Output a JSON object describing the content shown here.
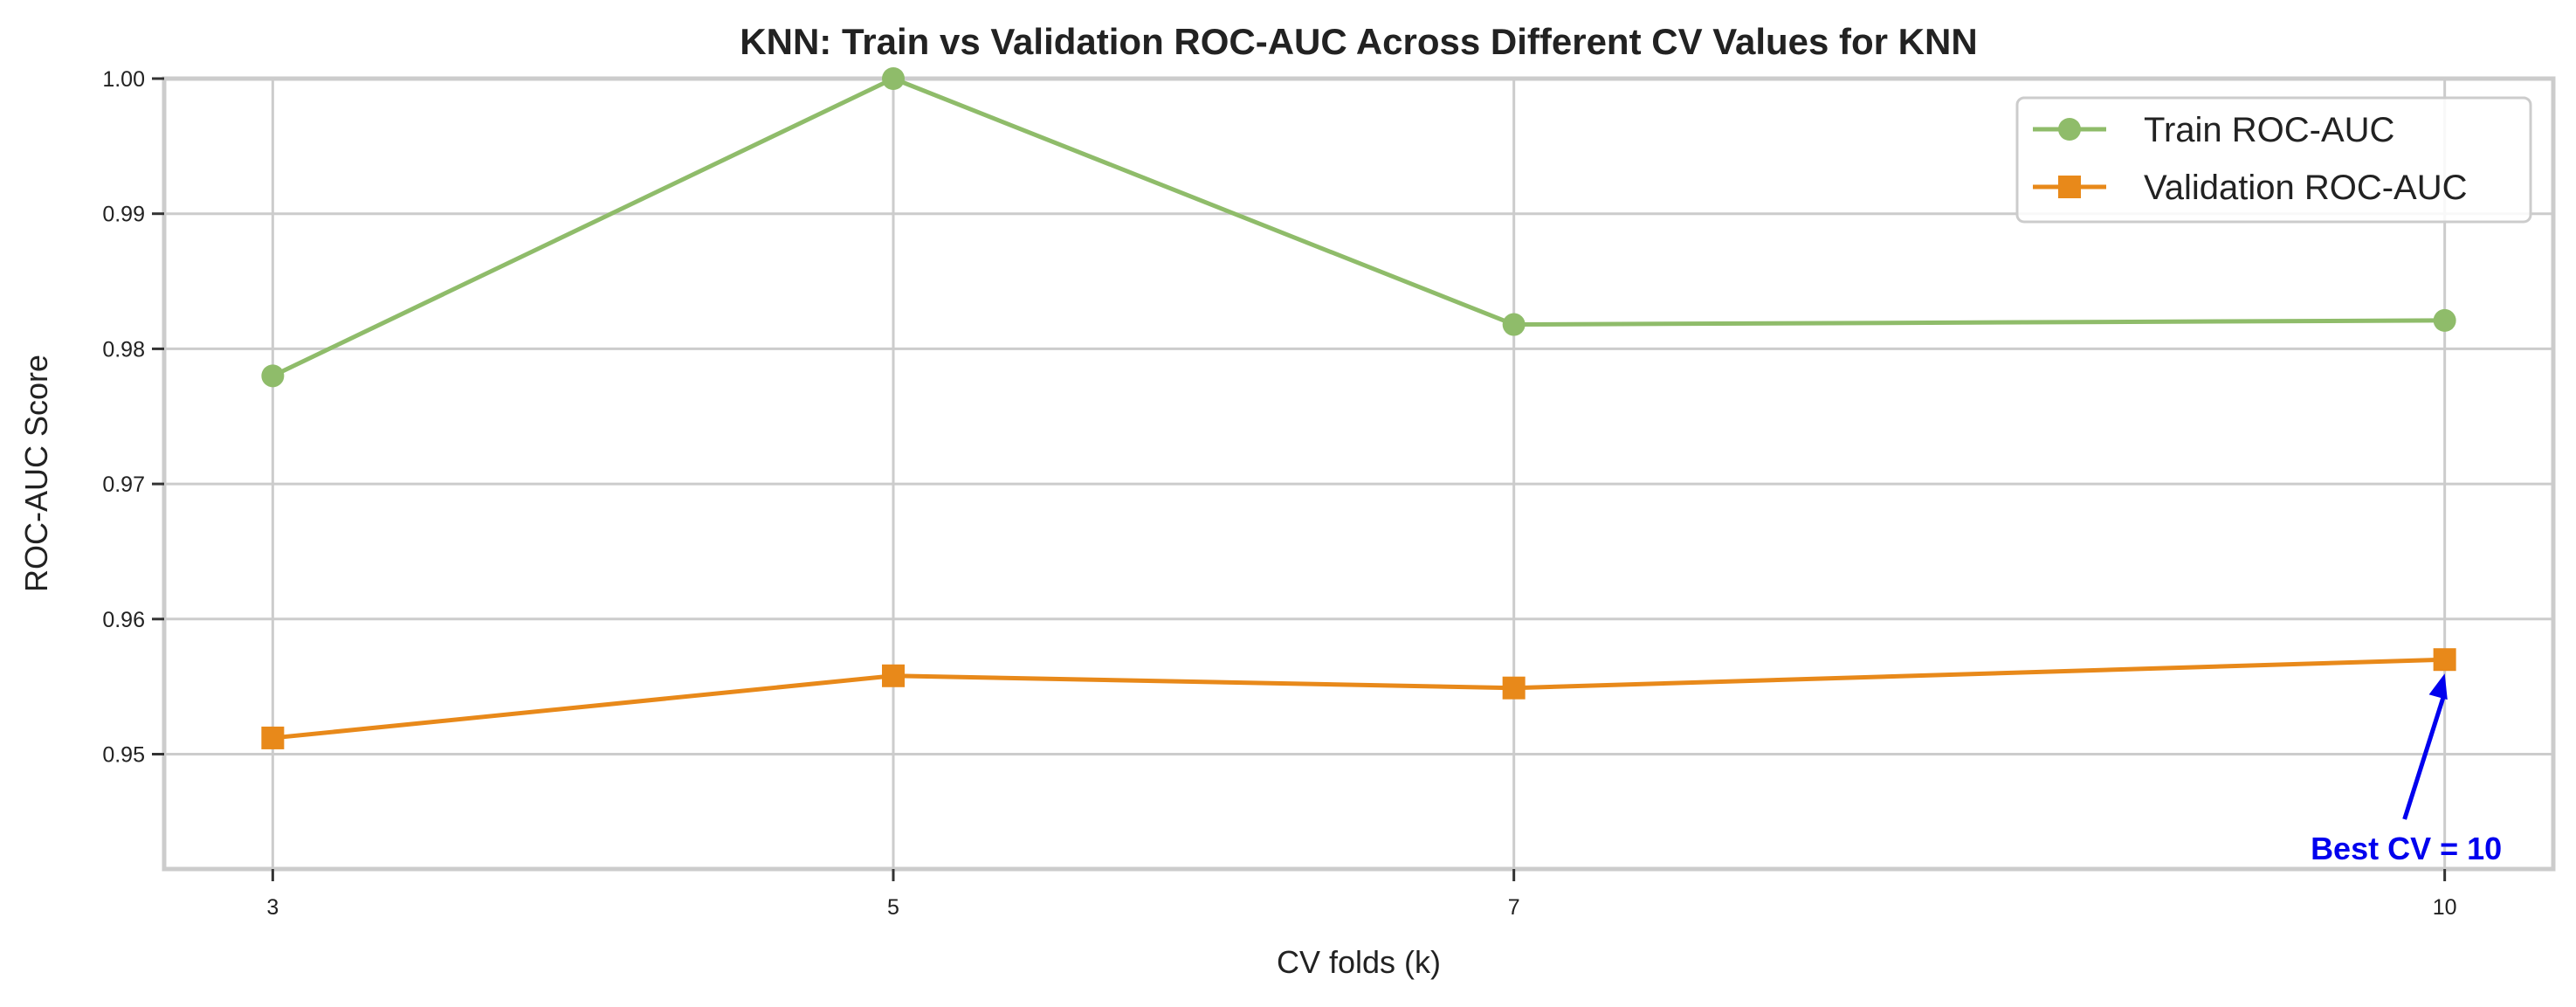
{
  "chart_data": {
    "type": "line",
    "title": "KNN: Train vs Validation ROC-AUC Across Different CV Values for KNN",
    "xlabel": "CV folds (k)",
    "ylabel": "ROC-AUC Score",
    "x": [
      3,
      5,
      7,
      10
    ],
    "x_tick_labels": [
      "3",
      "5",
      "7",
      "10"
    ],
    "y_ticks": [
      0.95,
      0.96,
      0.97,
      0.98,
      0.99,
      1.0
    ],
    "y_tick_labels": [
      "0.95",
      "0.96",
      "0.97",
      "0.98",
      "0.99",
      "1.00"
    ],
    "ylim": [
      0.9415,
      1.0
    ],
    "xlim": [
      2.65,
      10.35
    ],
    "grid": true,
    "legend_position": "top-right",
    "series": [
      {
        "name": "Train ROC-AUC",
        "marker": "circle",
        "color": "#8fbc6a",
        "values": [
          0.978,
          1.0,
          0.9818,
          0.9821
        ]
      },
      {
        "name": "Validation ROC-AUC",
        "marker": "square",
        "color": "#e8891a",
        "values": [
          0.9512,
          0.9558,
          0.9549,
          0.957
        ]
      }
    ],
    "annotation": {
      "text": "Best CV = 10",
      "x": 10,
      "y": 0.957,
      "color": "#0000ee"
    }
  }
}
